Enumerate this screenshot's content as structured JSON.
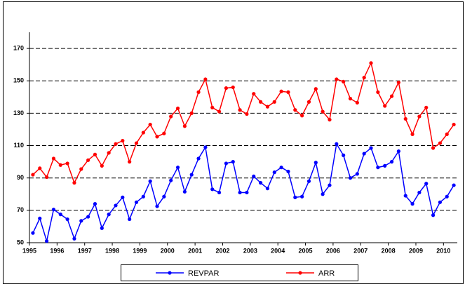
{
  "chart_data": {
    "type": "line",
    "categories": [
      "1995",
      null,
      null,
      null,
      "1996",
      null,
      null,
      null,
      "1997",
      null,
      null,
      null,
      "1998",
      null,
      null,
      null,
      "1999",
      null,
      null,
      null,
      "2000",
      null,
      null,
      null,
      "2001",
      null,
      null,
      null,
      "2002",
      null,
      null,
      null,
      "2003",
      null,
      null,
      null,
      "2004",
      null,
      null,
      null,
      "2005",
      null,
      null,
      null,
      "2006",
      null,
      null,
      null,
      "2007",
      null,
      null,
      null,
      "2008",
      null,
      null,
      null,
      "2009",
      null,
      null,
      null,
      "2010",
      null
    ],
    "series": [
      {
        "name": "REVPAR",
        "color": "#0000ff",
        "values": [
          56,
          65,
          51,
          70.5,
          67.5,
          64.5,
          52.5,
          63.5,
          66,
          74,
          59,
          67.5,
          73,
          78,
          64.5,
          75,
          78.5,
          88,
          72.5,
          78.5,
          88.5,
          96.5,
          81.5,
          92,
          102,
          109,
          83,
          81,
          99,
          100,
          81,
          81,
          91,
          87,
          83.5,
          93.5,
          96.5,
          94,
          78,
          78.5,
          88,
          99.5,
          80,
          85.5,
          111,
          104,
          90,
          92.5,
          105,
          108.5,
          96.5,
          97.5,
          100,
          106.5,
          79,
          74,
          81,
          86.5,
          67,
          75,
          78.5,
          85.5
        ]
      },
      {
        "name": "ARR",
        "color": "#ff0000",
        "values": [
          92,
          96,
          90.5,
          102,
          98,
          99,
          87,
          95.5,
          101,
          104.5,
          97.5,
          105.5,
          111,
          113,
          100,
          111.5,
          118,
          123,
          115.5,
          117.5,
          128,
          133,
          122,
          130,
          143,
          151,
          133.5,
          131,
          145.5,
          146,
          132,
          129.5,
          142,
          137,
          134,
          137,
          143.5,
          143,
          132,
          128.5,
          137,
          145,
          131,
          126,
          151,
          149.5,
          139,
          136.5,
          152,
          161,
          143,
          134.5,
          140.5,
          149,
          126.5,
          117,
          128,
          133.5,
          108.5,
          111.5,
          117,
          123
        ]
      }
    ],
    "ylim": [
      50,
      180
    ],
    "yticks": [
      50,
      70,
      90,
      110,
      130,
      150,
      170
    ],
    "grid": true,
    "legend": "bottom"
  }
}
